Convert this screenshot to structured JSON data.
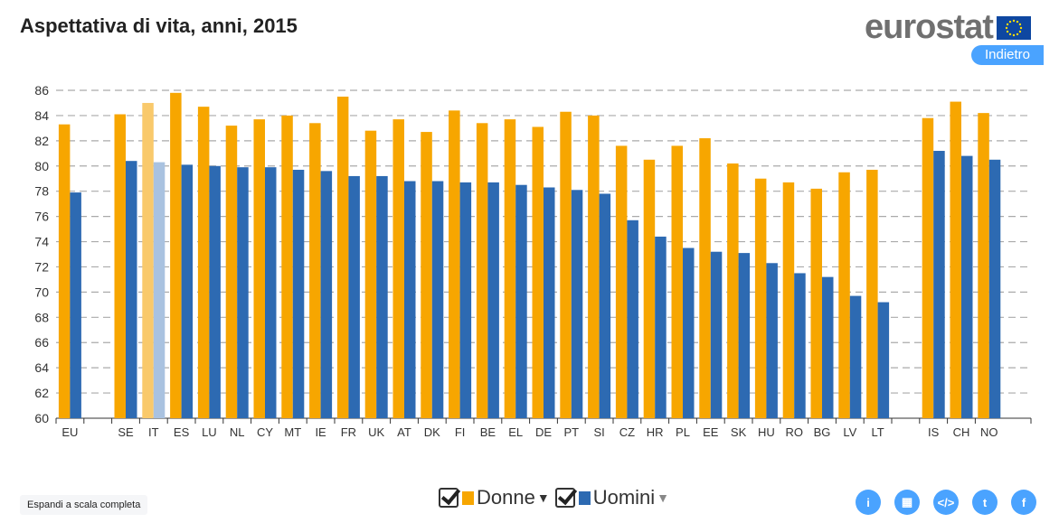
{
  "header": {
    "title": "Aspettativa di vita, anni, 2015",
    "logo": "eurostat",
    "back_label": "Indietro"
  },
  "footer": {
    "expand_label": "Espandi a scala completa"
  },
  "legend": [
    {
      "label": "Donne",
      "color": "#f7a600"
    },
    {
      "label": "Uomini",
      "color": "#2d6ab2"
    }
  ],
  "colors": {
    "women": "#f7a600",
    "men": "#2d6ab2",
    "women_highlight": "#f9c96b",
    "men_highlight": "#a9c2e0"
  },
  "share_icons": [
    "info-icon",
    "table-icon",
    "embed-icon",
    "twitter-icon",
    "facebook-icon"
  ],
  "chart_data": {
    "type": "bar",
    "title": "Aspettativa di vita, anni, 2015",
    "categories": [
      "EU",
      "",
      "SE",
      "IT",
      "ES",
      "LU",
      "NL",
      "CY",
      "MT",
      "IE",
      "FR",
      "UK",
      "AT",
      "DK",
      "FI",
      "BE",
      "EL",
      "DE",
      "PT",
      "SI",
      "CZ",
      "HR",
      "PL",
      "EE",
      "SK",
      "HU",
      "RO",
      "BG",
      "LV",
      "LT",
      "",
      "IS",
      "CH",
      "NO"
    ],
    "highlight": "IT",
    "series": [
      {
        "name": "Donne",
        "values": [
          83.3,
          null,
          84.1,
          85.0,
          85.8,
          84.7,
          83.2,
          83.7,
          84.0,
          83.4,
          85.5,
          82.8,
          83.7,
          82.7,
          84.4,
          83.4,
          83.7,
          83.1,
          84.3,
          84.0,
          81.6,
          80.5,
          81.6,
          82.2,
          80.2,
          79.0,
          78.7,
          78.2,
          79.5,
          79.7,
          null,
          83.8,
          85.1,
          84.2
        ]
      },
      {
        "name": "Uomini",
        "values": [
          77.9,
          null,
          80.4,
          80.3,
          80.1,
          80.0,
          79.9,
          79.9,
          79.7,
          79.6,
          79.2,
          79.2,
          78.8,
          78.8,
          78.7,
          78.7,
          78.5,
          78.3,
          78.1,
          77.8,
          75.7,
          74.4,
          73.5,
          73.2,
          73.1,
          72.3,
          71.5,
          71.2,
          69.7,
          69.2,
          null,
          81.2,
          80.8,
          80.5
        ]
      }
    ],
    "ylim": [
      60,
      86
    ],
    "yticks": [
      "60",
      "62",
      "64",
      "66",
      "68",
      "70",
      "72",
      "74",
      "76",
      "78",
      "80",
      "82",
      "84",
      "86"
    ],
    "grid": true,
    "legend_position": "bottom"
  }
}
